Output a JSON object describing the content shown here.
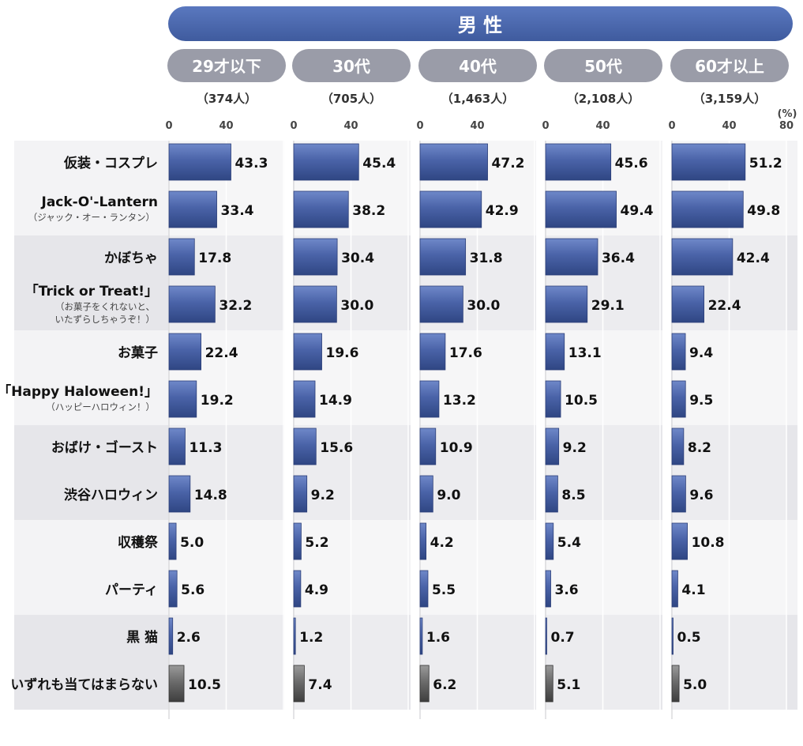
{
  "title": "男 性",
  "unit": "(%)",
  "axis_ticks": [
    "0",
    "40",
    "80"
  ],
  "categories": [
    {
      "label": "仮装・コスプレ",
      "sub": []
    },
    {
      "label": "Jack-O'-Lantern",
      "sub": [
        "（ジャック・オー・ランタン）"
      ]
    },
    {
      "label": "かぼちゃ",
      "sub": []
    },
    {
      "label": "「Trick or Treat!」",
      "sub": [
        "（お菓子をくれないと、",
        "いたずらしちゃうぞ！）"
      ]
    },
    {
      "label": "お菓子",
      "sub": []
    },
    {
      "label": "「Happy Haloween!」",
      "sub": [
        "（ハッピーハロウィン！）"
      ]
    },
    {
      "label": "おばけ・ゴースト",
      "sub": []
    },
    {
      "label": "渋谷ハロウィン",
      "sub": []
    },
    {
      "label": "収穫祭",
      "sub": []
    },
    {
      "label": "パーティ",
      "sub": []
    },
    {
      "label": "黒 猫",
      "sub": []
    },
    {
      "label": "いずれも当てはまらない",
      "sub": []
    }
  ],
  "colors": {
    "title_bar": "#4a67ad",
    "group_header": "#9a9ca8",
    "bar_blue": "#4a63a8",
    "bar_gray": "#6b6b6b",
    "band_dark": "#e6e6ea",
    "band_light": "#f3f3f5"
  },
  "chart_data": {
    "type": "bar",
    "orientation": "horizontal",
    "title": "男 性",
    "xlim": [
      0,
      80
    ],
    "x_ticks": [
      0,
      40,
      80
    ],
    "unit": "%",
    "categories": [
      "仮装・コスプレ",
      "Jack-O'-Lantern",
      "かぼちゃ",
      "「Trick or Treat!」",
      "お菓子",
      "「Happy Haloween!」",
      "おばけ・ゴースト",
      "渋谷ハロウィン",
      "収穫祭",
      "パーティ",
      "黒 猫",
      "いずれも当てはまらない"
    ],
    "series": [
      {
        "name": "29才以下",
        "n": "（374人）",
        "values": [
          43.3,
          33.4,
          17.8,
          32.2,
          22.4,
          19.2,
          11.3,
          14.8,
          5.0,
          5.6,
          2.6,
          10.5
        ]
      },
      {
        "name": "30代",
        "n": "（705人）",
        "values": [
          45.4,
          38.2,
          30.4,
          30.0,
          19.6,
          14.9,
          15.6,
          9.2,
          5.2,
          4.9,
          1.2,
          7.4
        ]
      },
      {
        "name": "40代",
        "n": "（1,463人）",
        "values": [
          47.2,
          42.9,
          31.8,
          30.0,
          17.6,
          13.2,
          10.9,
          9.0,
          4.2,
          5.5,
          1.6,
          6.2
        ]
      },
      {
        "name": "50代",
        "n": "（2,108人）",
        "values": [
          45.6,
          49.4,
          36.4,
          29.1,
          13.1,
          10.5,
          9.2,
          8.5,
          5.4,
          3.6,
          0.7,
          5.1
        ]
      },
      {
        "name": "60才以上",
        "n": "（3,159人）",
        "values": [
          51.2,
          49.8,
          42.4,
          22.4,
          9.4,
          9.5,
          8.2,
          9.6,
          10.8,
          4.1,
          0.5,
          5.0
        ]
      }
    ]
  }
}
